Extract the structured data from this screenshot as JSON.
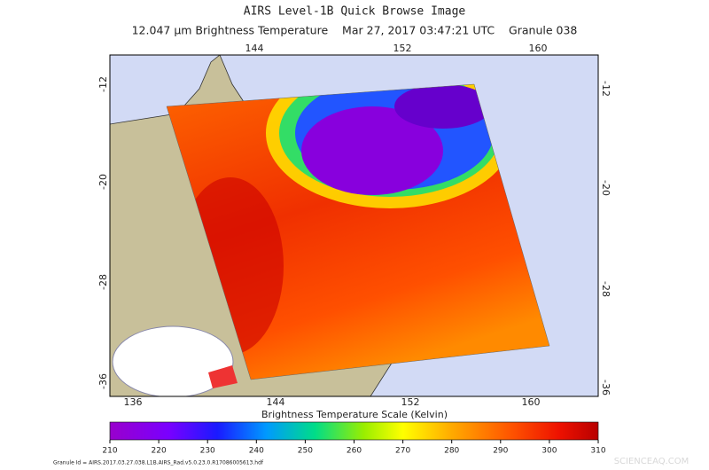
{
  "title": "AIRS Level-1B Quick Browse Image",
  "subtitle": "12.047 µm Brightness Temperature    Mar 27, 2017 03:47:21 UTC    Granule 038",
  "map": {
    "lon_labels_top": [
      "144",
      "152",
      "160"
    ],
    "lon_labels_bottom": [
      "136",
      "144",
      "152",
      "160"
    ],
    "lat_labels_left": [
      "-12",
      "-20",
      "-28",
      "-36"
    ],
    "lat_labels_right": [
      "-12",
      "-20",
      "-28",
      "-36"
    ]
  },
  "colorbar": {
    "label": "Brightness Temperature Scale (Kelvin)",
    "range": [
      210,
      310
    ],
    "ticks": [
      210,
      220,
      230,
      240,
      250,
      260,
      270,
      280,
      290,
      300,
      310
    ]
  },
  "granule_id": "Granule Id = AIRS.2017.03.27.038.L1B.AIRS_Rad.v5.0.23.0.R17086005613.hdf",
  "watermark": "SCIENCEAQ.COM"
}
